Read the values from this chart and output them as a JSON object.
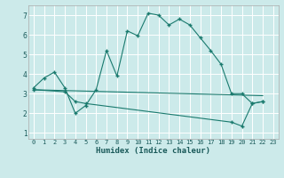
{
  "xlabel": "Humidex (Indice chaleur)",
  "bg_color": "#cceaea",
  "grid_color": "#ffffff",
  "line_color": "#1a7a6e",
  "xlim": [
    -0.5,
    23.5
  ],
  "ylim": [
    0.7,
    7.5
  ],
  "yticks": [
    1,
    2,
    3,
    4,
    5,
    6,
    7
  ],
  "xticks": [
    0,
    1,
    2,
    3,
    4,
    5,
    6,
    7,
    8,
    9,
    10,
    11,
    12,
    13,
    14,
    15,
    16,
    17,
    18,
    19,
    20,
    21,
    22,
    23
  ],
  "curve1_x": [
    0,
    1,
    2,
    3,
    4,
    5,
    6,
    7,
    8,
    9,
    10,
    11,
    12,
    13,
    14,
    15,
    16,
    17,
    18,
    19,
    20,
    21,
    22
  ],
  "curve1_y": [
    3.3,
    3.8,
    4.1,
    3.3,
    2.0,
    2.4,
    3.2,
    5.2,
    3.9,
    6.2,
    5.95,
    7.1,
    7.0,
    6.5,
    6.8,
    6.5,
    5.85,
    5.2,
    4.5,
    3.0,
    3.0,
    2.5,
    2.6
  ],
  "curve2_x": [
    0,
    22
  ],
  "curve2_y": [
    3.2,
    2.9
  ],
  "curve3_x": [
    0,
    3,
    4,
    5,
    19,
    20,
    21,
    22
  ],
  "curve3_y": [
    3.2,
    3.1,
    2.6,
    2.5,
    1.55,
    1.35,
    2.5,
    2.6
  ],
  "curve3_markers_x": [
    0,
    3,
    4,
    5,
    19,
    20,
    21,
    22
  ],
  "curve3_markers_y": [
    3.2,
    3.1,
    2.6,
    2.5,
    1.55,
    1.35,
    2.5,
    2.6
  ]
}
